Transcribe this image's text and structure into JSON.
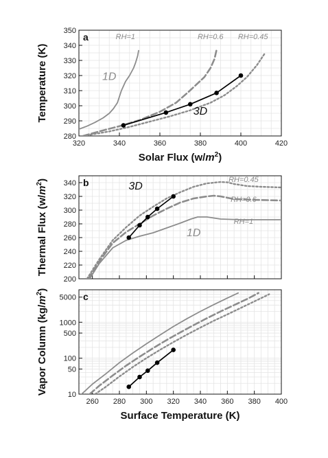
{
  "chart_data": [
    {
      "type": "line",
      "panel_label": "a",
      "xlabel": "Solar Flux (w/m²)",
      "xlabel_parts": [
        "Solar Flux (w/",
        "m",
        "2",
        ")"
      ],
      "ylabel": "Temperature (K)",
      "xlim": [
        320,
        420
      ],
      "ylim": [
        280,
        350
      ],
      "xticks": [
        320,
        340,
        360,
        380,
        400,
        420
      ],
      "yticks": [
        280,
        290,
        300,
        310,
        320,
        330,
        340,
        350
      ],
      "grid": true,
      "annotations": [
        {
          "text": "RH=1",
          "x": 343,
          "y": 344,
          "style": "small"
        },
        {
          "text": "RH=0.6",
          "x": 385,
          "y": 344,
          "style": "small"
        },
        {
          "text": "RH=0.45",
          "x": 406,
          "y": 344,
          "style": "small"
        },
        {
          "text": "1D",
          "x": 335,
          "y": 317,
          "style": "big"
        },
        {
          "text": "3D",
          "x": 380,
          "y": 294,
          "style": "dark"
        }
      ],
      "series": [
        {
          "label": "RH=1",
          "style": "solid-gray",
          "x": [
            320,
            324,
            328,
            332,
            335,
            337,
            339,
            341,
            343,
            345,
            347,
            348,
            349,
            349.5
          ],
          "y": [
            284.5,
            286.5,
            289,
            292,
            295,
            298,
            302,
            310,
            316,
            320,
            325,
            328.5,
            333,
            336.5
          ]
        },
        {
          "label": "RH=0.6",
          "style": "dashed-gray",
          "x": [
            322,
            330,
            340,
            350,
            360,
            368,
            374,
            378,
            382,
            385,
            387,
            388
          ],
          "y": [
            280,
            283,
            286.5,
            290.5,
            296,
            302,
            309,
            314,
            319,
            325,
            331,
            337
          ]
        },
        {
          "label": "RH=0.45",
          "style": "dotted-gray",
          "x": [
            322,
            335,
            345,
            355,
            365,
            375,
            385,
            392,
            398,
            403,
            408,
            412
          ],
          "y": [
            280,
            283,
            286,
            289.5,
            293,
            297,
            302,
            307,
            313,
            319,
            327,
            335
          ]
        },
        {
          "label": "3D",
          "style": "solid-black-markers",
          "x": [
            342,
            363,
            375,
            388,
            400
          ],
          "y": [
            287,
            295.5,
            301,
            308.5,
            320
          ]
        }
      ]
    },
    {
      "type": "line",
      "panel_label": "b",
      "xlabel": "",
      "ylabel": "Thermal Flux (w/m²)",
      "ylabel_parts": [
        "Thermal Flux (w/",
        "m",
        "2",
        ")"
      ],
      "xlim": [
        250,
        400
      ],
      "ylim": [
        200,
        350
      ],
      "xticks": [],
      "yticks": [
        200,
        220,
        240,
        260,
        280,
        300,
        320,
        340
      ],
      "grid": true,
      "annotations": [
        {
          "text": "RH=0.45",
          "x": 372,
          "y": 341,
          "style": "small"
        },
        {
          "text": "RH=0.6",
          "x": 372,
          "y": 312,
          "style": "small"
        },
        {
          "text": "RH=1",
          "x": 372,
          "y": 280,
          "style": "small"
        },
        {
          "text": "1D",
          "x": 335,
          "y": 262,
          "style": "big"
        },
        {
          "text": "3D",
          "x": 292,
          "y": 330,
          "style": "dark"
        }
      ],
      "series": [
        {
          "label": "RH=1",
          "style": "solid-gray",
          "x": [
            258,
            265,
            275,
            285,
            295,
            305,
            315,
            325,
            333,
            338,
            345,
            355,
            370,
            385,
            400
          ],
          "y": [
            200,
            222,
            245,
            256,
            262,
            267,
            274,
            281,
            287,
            290,
            290,
            287,
            286,
            286,
            286
          ]
        },
        {
          "label": "RH=0.6",
          "style": "dashed-gray",
          "x": [
            257,
            265,
            275,
            285,
            295,
            305,
            315,
            325,
            335,
            345,
            350,
            355,
            365,
            380,
            400
          ],
          "y": [
            200,
            225,
            252,
            268,
            280,
            292,
            302,
            311,
            317,
            320,
            321,
            320,
            316,
            315,
            314
          ]
        },
        {
          "label": "RH=0.45",
          "style": "dotted-gray",
          "x": [
            256,
            265,
            275,
            285,
            295,
            305,
            315,
            325,
            335,
            345,
            355,
            360,
            365,
            375,
            385,
            400
          ],
          "y": [
            200,
            228,
            256,
            275,
            292,
            305,
            317,
            326,
            334,
            339,
            341,
            340.5,
            338,
            335,
            334,
            333
          ]
        },
        {
          "label": "3D",
          "style": "solid-black-markers",
          "x": [
            287,
            295,
            301,
            308,
            320
          ],
          "y": [
            260,
            278,
            290,
            302,
            320
          ]
        }
      ]
    },
    {
      "type": "line",
      "panel_label": "c",
      "xlabel": "Surface Temperature (K)",
      "ylabel": "Vapor Column (kg/m²)",
      "ylabel_parts": [
        "Vapor Column (kg/",
        "m",
        "2",
        ")"
      ],
      "xlim": [
        250,
        400
      ],
      "ylim": [
        10,
        8000
      ],
      "yscale": "log",
      "xticks": [
        260,
        280,
        300,
        320,
        340,
        360,
        380,
        400
      ],
      "yticks": [
        10,
        50,
        100,
        500,
        1000,
        5000
      ],
      "grid": true,
      "series": [
        {
          "label": "RH=1",
          "style": "solid-gray",
          "x": [
            252,
            260,
            270,
            280,
            290,
            300,
            310,
            320,
            330,
            340,
            350,
            360,
            368
          ],
          "y": [
            10,
            19,
            37,
            75,
            140,
            250,
            440,
            760,
            1250,
            2000,
            3100,
            4700,
            6500
          ]
        },
        {
          "label": "RH=0.6",
          "style": "dashed-gray",
          "x": [
            258,
            265,
            275,
            285,
            295,
            305,
            315,
            325,
            335,
            345,
            355,
            365,
            375,
            383
          ],
          "y": [
            10,
            17,
            33,
            62,
            110,
            190,
            320,
            520,
            830,
            1300,
            2000,
            3000,
            4500,
            6500
          ]
        },
        {
          "label": "RH=0.45",
          "style": "dotted-gray",
          "x": [
            262,
            270,
            280,
            290,
            300,
            310,
            320,
            330,
            340,
            350,
            360,
            370,
            380,
            391
          ],
          "y": [
            10,
            16,
            31,
            57,
            100,
            170,
            280,
            450,
            710,
            1100,
            1650,
            2500,
            3800,
            6000
          ]
        },
        {
          "label": "3D",
          "style": "solid-black-markers",
          "x": [
            287,
            295,
            301,
            308,
            320
          ],
          "y": [
            16,
            30,
            45,
            75,
            170
          ]
        }
      ]
    }
  ]
}
